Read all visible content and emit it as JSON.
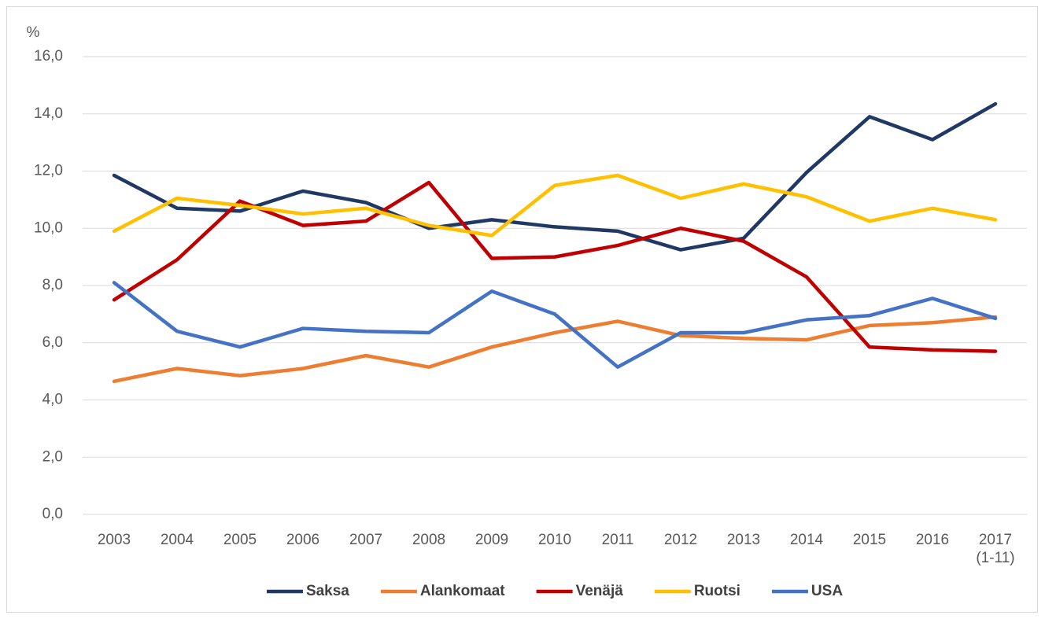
{
  "chart_data": {
    "type": "line",
    "y_label": "%",
    "categories": [
      "2003",
      "2004",
      "2005",
      "2006",
      "2007",
      "2008",
      "2009",
      "2010",
      "2011",
      "2012",
      "2013",
      "2014",
      "2015",
      "2016",
      "2017\n(1-11)"
    ],
    "series": [
      {
        "name": "Saksa",
        "color": "#203864",
        "values": [
          11.85,
          10.7,
          10.6,
          11.3,
          10.9,
          10.0,
          10.3,
          10.05,
          9.9,
          9.25,
          9.65,
          11.95,
          13.9,
          13.1,
          14.35
        ]
      },
      {
        "name": "Alankomaat",
        "color": "#ed7d31",
        "values": [
          4.65,
          5.1,
          4.85,
          5.1,
          5.55,
          5.15,
          5.85,
          6.35,
          6.75,
          6.25,
          6.15,
          6.1,
          6.6,
          6.7,
          6.9
        ]
      },
      {
        "name": "Venäjä",
        "color": "#c00000",
        "values": [
          7.5,
          8.9,
          10.95,
          10.1,
          10.25,
          11.6,
          8.95,
          9.0,
          9.4,
          10.0,
          9.55,
          8.3,
          5.85,
          5.75,
          5.7
        ]
      },
      {
        "name": "Ruotsi",
        "color": "#ffc000",
        "values": [
          9.9,
          11.05,
          10.8,
          10.5,
          10.7,
          10.1,
          9.75,
          11.5,
          11.85,
          11.05,
          11.55,
          11.1,
          10.25,
          10.7,
          10.3
        ]
      },
      {
        "name": "USA",
        "color": "#4472c4",
        "values": [
          8.1,
          6.4,
          5.85,
          6.5,
          6.4,
          6.35,
          7.8,
          7.0,
          5.15,
          6.35,
          6.35,
          6.8,
          6.95,
          7.55,
          6.85
        ]
      }
    ],
    "ylim": [
      0,
      16
    ],
    "yticks": [
      {
        "value": 0,
        "label": "0,0"
      },
      {
        "value": 2,
        "label": "2,0"
      },
      {
        "value": 4,
        "label": "4,0"
      },
      {
        "value": 6,
        "label": "6,0"
      },
      {
        "value": 8,
        "label": "8,0"
      },
      {
        "value": 10,
        "label": "10,0"
      },
      {
        "value": 12,
        "label": "12,0"
      },
      {
        "value": 14,
        "label": "14,0"
      },
      {
        "value": 16,
        "label": "16,0"
      }
    ],
    "grid": true,
    "legend": "bottom"
  }
}
